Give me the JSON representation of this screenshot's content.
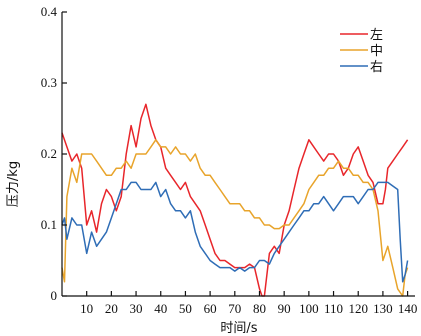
{
  "chart_data": {
    "type": "line",
    "xlabel": "时间/s",
    "ylabel": "压力/kg",
    "xlim": [
      0,
      143
    ],
    "ylim": [
      0,
      0.4
    ],
    "x_ticks": [
      10,
      20,
      30,
      40,
      50,
      60,
      70,
      80,
      90,
      100,
      110,
      120,
      130,
      140
    ],
    "x_tick_labels": [
      "10",
      "20",
      "30",
      "40",
      "50",
      "60",
      "70",
      "80",
      "90",
      "100",
      "110",
      "120",
      "130",
      "140"
    ],
    "y_ticks": [
      0,
      0.1,
      0.2,
      0.3,
      0.4
    ],
    "y_tick_labels": [
      "0",
      "0.1",
      "0.2",
      "0.3",
      "0.4"
    ],
    "legend_position": "top-right",
    "grid": false,
    "series": [
      {
        "name": "左",
        "color": "#e8262b",
        "x": [
          0,
          2,
          4,
          6,
          8,
          10,
          12,
          14,
          16,
          18,
          20,
          22,
          24,
          26,
          28,
          30,
          32,
          34,
          36,
          38,
          40,
          42,
          44,
          46,
          48,
          50,
          52,
          54,
          56,
          58,
          60,
          62,
          64,
          66,
          68,
          70,
          72,
          74,
          76,
          78,
          80,
          81,
          82,
          84,
          86,
          88,
          90,
          92,
          94,
          96,
          98,
          100,
          102,
          104,
          106,
          108,
          110,
          112,
          114,
          116,
          118,
          120,
          122,
          124,
          126,
          128,
          130,
          131,
          132,
          134,
          136,
          138,
          140
        ],
        "y": [
          0.23,
          0.21,
          0.19,
          0.2,
          0.18,
          0.1,
          0.12,
          0.09,
          0.13,
          0.15,
          0.14,
          0.12,
          0.14,
          0.2,
          0.24,
          0.21,
          0.25,
          0.27,
          0.24,
          0.22,
          0.21,
          0.18,
          0.17,
          0.16,
          0.15,
          0.16,
          0.14,
          0.13,
          0.12,
          0.1,
          0.08,
          0.06,
          0.05,
          0.05,
          0.045,
          0.04,
          0.04,
          0.04,
          0.045,
          0.04,
          0.01,
          0.0,
          0.0,
          0.06,
          0.07,
          0.06,
          0.1,
          0.12,
          0.15,
          0.18,
          0.2,
          0.22,
          0.21,
          0.2,
          0.19,
          0.2,
          0.2,
          0.19,
          0.17,
          0.18,
          0.2,
          0.21,
          0.19,
          0.17,
          0.16,
          0.13,
          0.13,
          0.15,
          0.18,
          0.19,
          0.2,
          0.21,
          0.22
        ]
      },
      {
        "name": "中",
        "color": "#e8a42b",
        "x": [
          0,
          1,
          2,
          4,
          6,
          8,
          10,
          12,
          14,
          16,
          18,
          20,
          22,
          24,
          26,
          28,
          30,
          32,
          34,
          36,
          38,
          40,
          42,
          44,
          46,
          48,
          50,
          52,
          54,
          56,
          58,
          60,
          62,
          64,
          66,
          68,
          70,
          72,
          74,
          76,
          78,
          80,
          82,
          84,
          86,
          88,
          90,
          92,
          94,
          96,
          98,
          100,
          102,
          104,
          106,
          108,
          110,
          112,
          114,
          116,
          118,
          120,
          122,
          124,
          126,
          128,
          130,
          132,
          134,
          136,
          138,
          139,
          140
        ],
        "y": [
          0.04,
          0.02,
          0.14,
          0.18,
          0.16,
          0.2,
          0.2,
          0.2,
          0.19,
          0.18,
          0.17,
          0.17,
          0.18,
          0.18,
          0.19,
          0.18,
          0.2,
          0.2,
          0.2,
          0.21,
          0.22,
          0.21,
          0.21,
          0.2,
          0.21,
          0.2,
          0.2,
          0.19,
          0.2,
          0.18,
          0.17,
          0.17,
          0.16,
          0.15,
          0.14,
          0.13,
          0.13,
          0.13,
          0.12,
          0.12,
          0.11,
          0.11,
          0.1,
          0.1,
          0.095,
          0.095,
          0.1,
          0.1,
          0.11,
          0.12,
          0.13,
          0.15,
          0.16,
          0.17,
          0.17,
          0.18,
          0.18,
          0.19,
          0.18,
          0.18,
          0.17,
          0.17,
          0.16,
          0.16,
          0.15,
          0.12,
          0.05,
          0.07,
          0.04,
          0.01,
          0.0,
          0.03,
          0.04
        ]
      },
      {
        "name": "右",
        "color": "#2f6db6",
        "x": [
          0,
          1,
          2,
          4,
          6,
          8,
          10,
          12,
          14,
          16,
          18,
          20,
          22,
          24,
          26,
          28,
          30,
          32,
          34,
          36,
          38,
          40,
          42,
          44,
          46,
          48,
          50,
          52,
          54,
          56,
          58,
          60,
          62,
          64,
          66,
          68,
          70,
          72,
          74,
          76,
          78,
          80,
          82,
          84,
          86,
          88,
          90,
          92,
          94,
          96,
          98,
          100,
          102,
          104,
          106,
          108,
          110,
          112,
          114,
          116,
          118,
          120,
          122,
          124,
          126,
          128,
          130,
          132,
          134,
          136,
          137,
          138,
          139,
          140
        ],
        "y": [
          0.1,
          0.11,
          0.08,
          0.11,
          0.1,
          0.1,
          0.06,
          0.09,
          0.07,
          0.08,
          0.09,
          0.11,
          0.13,
          0.15,
          0.15,
          0.16,
          0.16,
          0.15,
          0.15,
          0.15,
          0.16,
          0.14,
          0.15,
          0.13,
          0.12,
          0.12,
          0.11,
          0.12,
          0.09,
          0.07,
          0.06,
          0.05,
          0.045,
          0.04,
          0.04,
          0.04,
          0.035,
          0.04,
          0.035,
          0.04,
          0.04,
          0.05,
          0.05,
          0.045,
          0.06,
          0.07,
          0.08,
          0.09,
          0.1,
          0.11,
          0.12,
          0.12,
          0.13,
          0.13,
          0.14,
          0.13,
          0.12,
          0.13,
          0.14,
          0.14,
          0.14,
          0.13,
          0.14,
          0.15,
          0.15,
          0.16,
          0.16,
          0.16,
          0.155,
          0.15,
          0.08,
          0.02,
          0.03,
          0.05
        ]
      }
    ]
  }
}
